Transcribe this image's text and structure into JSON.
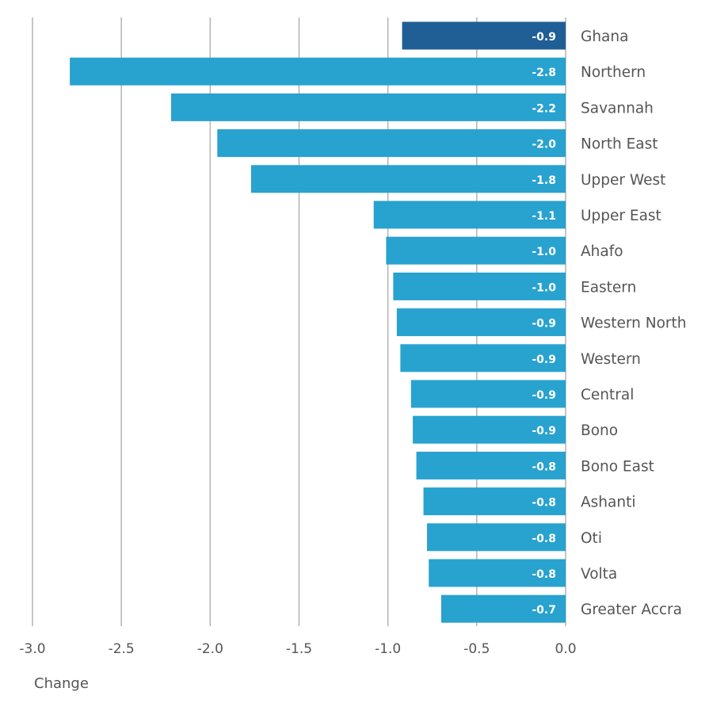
{
  "chart_data": {
    "type": "bar",
    "orientation": "horizontal",
    "categories": [
      "Ghana",
      "Northern",
      "Savannah",
      "North East",
      "Upper West",
      "Upper East",
      "Ahafo",
      "Eastern",
      "Western North",
      "Western",
      "Central",
      "Bono",
      "Bono East",
      "Ashanti",
      "Oti",
      "Volta",
      "Greater Accra"
    ],
    "values": [
      -0.92,
      -2.79,
      -2.22,
      -1.96,
      -1.77,
      -1.08,
      -1.01,
      -0.97,
      -0.95,
      -0.93,
      -0.87,
      -0.86,
      -0.84,
      -0.8,
      -0.78,
      -0.77,
      -0.7
    ],
    "data_labels": [
      "-0.9",
      "-2.8",
      "-2.2",
      "-2.0",
      "-1.8",
      "-1.1",
      "-1.0",
      "-1.0",
      "-0.9",
      "-0.9",
      "-0.9",
      "-0.9",
      "-0.8",
      "-0.8",
      "-0.8",
      "-0.8",
      "-0.7"
    ],
    "highlight_category": "Ghana",
    "xlabel": "Change",
    "ylabel": "",
    "xlim": [
      -3.0,
      0.0
    ],
    "x_ticks": [
      "-3.0",
      "-2.5",
      "-2.0",
      "-1.5",
      "-1.0",
      "-0.5",
      "0.0"
    ],
    "grid": "vertical",
    "colors": {
      "bar": "#28a2cf",
      "highlight": "#1f5f96"
    }
  }
}
